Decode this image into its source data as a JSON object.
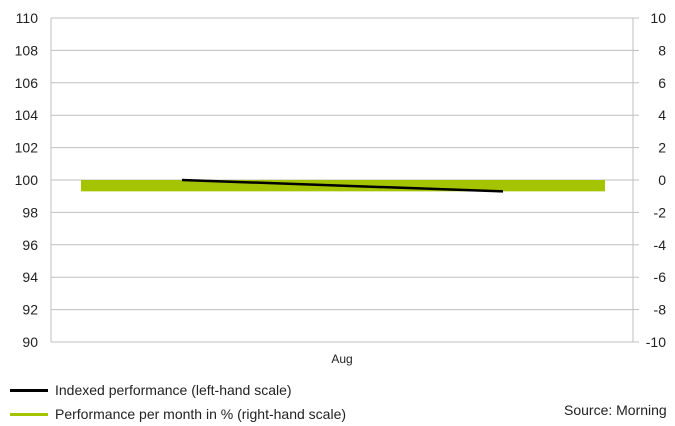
{
  "colors": {
    "indexed_line": "#000000",
    "monthly_bar": "#a5c400",
    "gridline": "#bfbfbf"
  },
  "legend": {
    "items": [
      {
        "label": "Indexed performance (left-hand scale)",
        "color": "#000000"
      },
      {
        "label": "Performance per month in % (right-hand scale)",
        "color": "#a5c400"
      }
    ]
  },
  "source_text": "Source: Morning",
  "chart_data": {
    "type": "line",
    "categories": [
      "Aug"
    ],
    "grid": true,
    "legend_position": "bottom-left",
    "y_left": {
      "range": [
        90,
        110
      ],
      "ticks": [
        90,
        92,
        94,
        96,
        98,
        100,
        102,
        104,
        106,
        108,
        110
      ]
    },
    "y_right": {
      "range": [
        -10,
        10
      ],
      "ticks": [
        -10,
        -8,
        -6,
        -4,
        -2,
        0,
        2,
        4,
        6,
        8,
        10
      ]
    },
    "series": [
      {
        "name": "Indexed performance (left-hand scale)",
        "type": "line",
        "axis": "left",
        "x": [
          "start of Aug",
          "end of Aug"
        ],
        "values": [
          100.0,
          99.3
        ]
      },
      {
        "name": "Performance per month in % (right-hand scale)",
        "type": "bar",
        "axis": "right",
        "x": [
          "Aug"
        ],
        "values": [
          -0.7
        ]
      }
    ]
  }
}
